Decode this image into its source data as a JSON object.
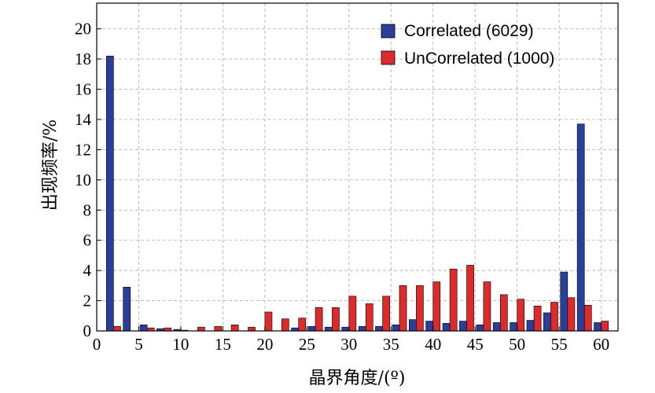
{
  "chart_data": {
    "type": "bar",
    "xlabel": "晶界角度/(º)",
    "ylabel": "出现频率/%",
    "xlim": [
      0,
      62
    ],
    "ylim": [
      0,
      21.7
    ],
    "xticks": [
      0,
      5,
      10,
      15,
      20,
      25,
      30,
      35,
      40,
      45,
      50,
      55,
      60
    ],
    "yticks": [
      0,
      2,
      4,
      6,
      8,
      10,
      12,
      14,
      16,
      18,
      20
    ],
    "grid": true,
    "legend_position": "top-right",
    "bin_width": 2,
    "x": [
      2,
      4,
      6,
      8,
      10,
      12,
      14,
      16,
      18,
      20,
      22,
      24,
      26,
      28,
      30,
      32,
      34,
      36,
      38,
      40,
      42,
      44,
      46,
      48,
      50,
      52,
      54,
      56,
      58,
      60
    ],
    "series": [
      {
        "name": "Correlated (6029)",
        "color": "#2a3f9a",
        "values": [
          18.2,
          2.9,
          0.4,
          0.15,
          0.1,
          0.0,
          0.0,
          0.0,
          0.0,
          0.0,
          0.0,
          0.2,
          0.3,
          0.25,
          0.25,
          0.3,
          0.3,
          0.4,
          0.75,
          0.65,
          0.5,
          0.65,
          0.4,
          0.55,
          0.55,
          0.7,
          1.2,
          3.9,
          13.7,
          0.55
        ]
      },
      {
        "name": "UnCorrelated (1000)",
        "color": "#dd2a2a",
        "values": [
          0.3,
          0.0,
          0.2,
          0.2,
          0.05,
          0.25,
          0.3,
          0.4,
          0.25,
          1.25,
          0.8,
          0.85,
          1.55,
          1.55,
          2.3,
          1.8,
          2.3,
          3.0,
          3.0,
          3.25,
          4.1,
          4.35,
          3.25,
          2.4,
          2.1,
          1.65,
          1.9,
          2.2,
          1.7,
          0.65
        ]
      }
    ]
  }
}
